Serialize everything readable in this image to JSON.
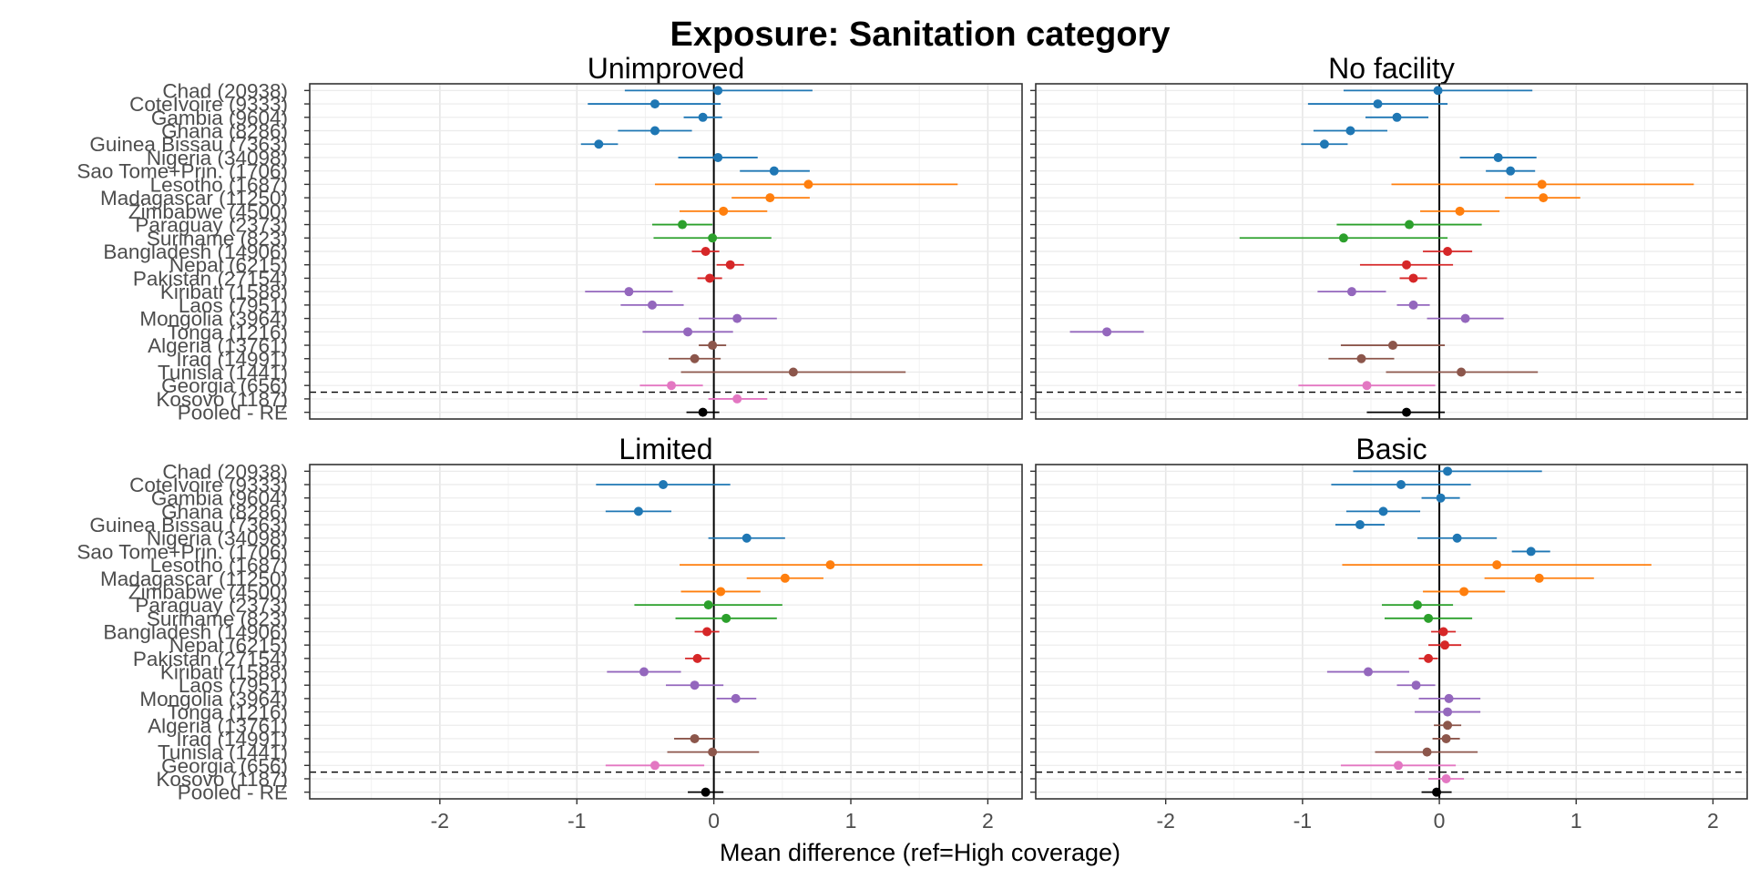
{
  "chart_data": {
    "type": "forest",
    "title": "Exposure: Sanitation category",
    "xlabel": "Mean difference (ref=High coverage)",
    "xlim": [
      -2.95,
      2.25
    ],
    "xticks": [
      -2,
      -1,
      0,
      1,
      2
    ],
    "grid": true,
    "reference_line": 0,
    "separator_below": "Kosovo (1187)",
    "countries": [
      "Chad (20938)",
      "CoteIvoire (9333)",
      "Gambia (9604)",
      "Ghana (8286)",
      "Guinea Bissau (7363)",
      "Nigeria (34098)",
      "Sao Tome+Prin. (1706)",
      "Lesotho (1687)",
      "Madagascar (11250)",
      "Zimbabwe (4500)",
      "Paraguay (2373)",
      "Suriname (823)",
      "Bangladesh (14906)",
      "Nepal (6215)",
      "Pakistan (27154)",
      "Kiribati (1588)",
      "Laos (7951)",
      "Mongolia (3964)",
      "Tonga (1216)",
      "Algeria (13761)",
      "Iraq (14991)",
      "Tunisia (1441)",
      "Georgia (656)",
      "Kosovo (1187)",
      "Pooled - RE"
    ],
    "region_colors": [
      "#1f77b4",
      "#1f77b4",
      "#1f77b4",
      "#1f77b4",
      "#1f77b4",
      "#1f77b4",
      "#1f77b4",
      "#ff7f0e",
      "#ff7f0e",
      "#ff7f0e",
      "#2ca02c",
      "#2ca02c",
      "#d62728",
      "#d62728",
      "#d62728",
      "#9467bd",
      "#9467bd",
      "#9467bd",
      "#9467bd",
      "#8c564b",
      "#8c564b",
      "#8c564b",
      "#e377c2",
      "#e377c2",
      "#000000"
    ],
    "panels": [
      {
        "name": "Unimproved",
        "estimates": [
          {
            "est": 0.03,
            "lo": -0.65,
            "hi": 0.72
          },
          {
            "est": -0.43,
            "lo": -0.92,
            "hi": 0.05
          },
          {
            "est": -0.08,
            "lo": -0.22,
            "hi": 0.06
          },
          {
            "est": -0.43,
            "lo": -0.7,
            "hi": -0.16
          },
          {
            "est": -0.84,
            "lo": -0.97,
            "hi": -0.7
          },
          {
            "est": 0.03,
            "lo": -0.26,
            "hi": 0.32
          },
          {
            "est": 0.44,
            "lo": 0.19,
            "hi": 0.7
          },
          {
            "est": 0.69,
            "lo": -0.43,
            "hi": 1.78
          },
          {
            "est": 0.41,
            "lo": 0.13,
            "hi": 0.7
          },
          {
            "est": 0.07,
            "lo": -0.25,
            "hi": 0.39
          },
          {
            "est": -0.23,
            "lo": -0.45,
            "hi": -0.01
          },
          {
            "est": -0.01,
            "lo": -0.44,
            "hi": 0.42
          },
          {
            "est": -0.06,
            "lo": -0.16,
            "hi": 0.04
          },
          {
            "est": 0.12,
            "lo": 0.02,
            "hi": 0.22
          },
          {
            "est": -0.03,
            "lo": -0.12,
            "hi": 0.06
          },
          {
            "est": -0.62,
            "lo": -0.94,
            "hi": -0.3
          },
          {
            "est": -0.45,
            "lo": -0.68,
            "hi": -0.22
          },
          {
            "est": 0.17,
            "lo": -0.11,
            "hi": 0.46
          },
          {
            "est": -0.19,
            "lo": -0.52,
            "hi": 0.14
          },
          {
            "est": -0.01,
            "lo": -0.11,
            "hi": 0.09
          },
          {
            "est": -0.14,
            "lo": -0.33,
            "hi": 0.05
          },
          {
            "est": 0.58,
            "lo": -0.24,
            "hi": 1.4
          },
          {
            "est": -0.31,
            "lo": -0.54,
            "hi": -0.08
          },
          {
            "est": 0.17,
            "lo": -0.04,
            "hi": 0.39
          },
          {
            "est": -0.08,
            "lo": -0.2,
            "hi": 0.04
          }
        ]
      },
      {
        "name": "No facility",
        "estimates": [
          {
            "est": -0.01,
            "lo": -0.7,
            "hi": 0.68
          },
          {
            "est": -0.45,
            "lo": -0.96,
            "hi": 0.06
          },
          {
            "est": -0.31,
            "lo": -0.54,
            "hi": -0.08
          },
          {
            "est": -0.65,
            "lo": -0.92,
            "hi": -0.38
          },
          {
            "est": -0.84,
            "lo": -1.01,
            "hi": -0.67
          },
          {
            "est": 0.43,
            "lo": 0.15,
            "hi": 0.71
          },
          {
            "est": 0.52,
            "lo": 0.34,
            "hi": 0.7
          },
          {
            "est": 0.75,
            "lo": -0.35,
            "hi": 1.86
          },
          {
            "est": 0.76,
            "lo": 0.48,
            "hi": 1.03
          },
          {
            "est": 0.15,
            "lo": -0.14,
            "hi": 0.44
          },
          {
            "est": -0.22,
            "lo": -0.75,
            "hi": 0.31
          },
          {
            "est": -0.7,
            "lo": -1.46,
            "hi": 0.06
          },
          {
            "est": 0.06,
            "lo": -0.12,
            "hi": 0.24
          },
          {
            "est": -0.24,
            "lo": -0.58,
            "hi": 0.1
          },
          {
            "est": -0.19,
            "lo": -0.29,
            "hi": -0.09
          },
          {
            "est": -0.64,
            "lo": -0.89,
            "hi": -0.39
          },
          {
            "est": -0.19,
            "lo": -0.31,
            "hi": -0.07
          },
          {
            "est": 0.19,
            "lo": -0.09,
            "hi": 0.47
          },
          {
            "est": -2.43,
            "lo": -2.7,
            "hi": -2.16
          },
          {
            "est": -0.34,
            "lo": -0.72,
            "hi": 0.04
          },
          {
            "est": -0.57,
            "lo": -0.81,
            "hi": -0.33
          },
          {
            "est": 0.16,
            "lo": -0.39,
            "hi": 0.72
          },
          {
            "est": -0.53,
            "lo": -1.03,
            "hi": -0.03
          },
          {
            "est": null,
            "lo": null,
            "hi": null
          },
          {
            "est": -0.24,
            "lo": -0.53,
            "hi": 0.04
          }
        ]
      },
      {
        "name": "Limited",
        "estimates": [
          {
            "est": null,
            "lo": null,
            "hi": null
          },
          {
            "est": -0.37,
            "lo": -0.86,
            "hi": 0.12
          },
          {
            "est": null,
            "lo": null,
            "hi": null
          },
          {
            "est": -0.55,
            "lo": -0.79,
            "hi": -0.31
          },
          {
            "est": null,
            "lo": null,
            "hi": null
          },
          {
            "est": 0.24,
            "lo": -0.04,
            "hi": 0.52
          },
          {
            "est": null,
            "lo": null,
            "hi": null
          },
          {
            "est": 0.85,
            "lo": -0.25,
            "hi": 1.96
          },
          {
            "est": 0.52,
            "lo": 0.24,
            "hi": 0.8
          },
          {
            "est": 0.05,
            "lo": -0.24,
            "hi": 0.34
          },
          {
            "est": -0.04,
            "lo": -0.58,
            "hi": 0.5
          },
          {
            "est": 0.09,
            "lo": -0.28,
            "hi": 0.46
          },
          {
            "est": -0.05,
            "lo": -0.14,
            "hi": 0.04
          },
          {
            "est": null,
            "lo": null,
            "hi": null
          },
          {
            "est": -0.12,
            "lo": -0.21,
            "hi": -0.03
          },
          {
            "est": -0.51,
            "lo": -0.78,
            "hi": -0.24
          },
          {
            "est": -0.14,
            "lo": -0.35,
            "hi": 0.07
          },
          {
            "est": 0.16,
            "lo": 0.02,
            "hi": 0.31
          },
          {
            "est": null,
            "lo": null,
            "hi": null
          },
          {
            "est": null,
            "lo": null,
            "hi": null
          },
          {
            "est": -0.14,
            "lo": -0.29,
            "hi": 0.01
          },
          {
            "est": -0.01,
            "lo": -0.34,
            "hi": 0.33
          },
          {
            "est": -0.43,
            "lo": -0.79,
            "hi": -0.07
          },
          {
            "est": null,
            "lo": null,
            "hi": null
          },
          {
            "est": -0.06,
            "lo": -0.19,
            "hi": 0.07
          }
        ]
      },
      {
        "name": "Basic",
        "estimates": [
          {
            "est": 0.06,
            "lo": -0.63,
            "hi": 0.75
          },
          {
            "est": -0.28,
            "lo": -0.79,
            "hi": 0.23
          },
          {
            "est": 0.01,
            "lo": -0.13,
            "hi": 0.15
          },
          {
            "est": -0.41,
            "lo": -0.68,
            "hi": -0.14
          },
          {
            "est": -0.58,
            "lo": -0.76,
            "hi": -0.4
          },
          {
            "est": 0.13,
            "lo": -0.16,
            "hi": 0.42
          },
          {
            "est": 0.67,
            "lo": 0.53,
            "hi": 0.81
          },
          {
            "est": 0.42,
            "lo": -0.71,
            "hi": 1.55
          },
          {
            "est": 0.73,
            "lo": 0.33,
            "hi": 1.13
          },
          {
            "est": 0.18,
            "lo": -0.12,
            "hi": 0.48
          },
          {
            "est": -0.16,
            "lo": -0.42,
            "hi": 0.1
          },
          {
            "est": -0.08,
            "lo": -0.4,
            "hi": 0.24
          },
          {
            "est": 0.03,
            "lo": -0.06,
            "hi": 0.12
          },
          {
            "est": 0.04,
            "lo": -0.08,
            "hi": 0.16
          },
          {
            "est": -0.08,
            "lo": -0.15,
            "hi": -0.01
          },
          {
            "est": -0.52,
            "lo": -0.82,
            "hi": -0.22
          },
          {
            "est": -0.17,
            "lo": -0.31,
            "hi": -0.03
          },
          {
            "est": 0.07,
            "lo": -0.15,
            "hi": 0.3
          },
          {
            "est": 0.06,
            "lo": -0.18,
            "hi": 0.3
          },
          {
            "est": 0.06,
            "lo": -0.04,
            "hi": 0.16
          },
          {
            "est": 0.05,
            "lo": -0.05,
            "hi": 0.15
          },
          {
            "est": -0.09,
            "lo": -0.47,
            "hi": 0.28
          },
          {
            "est": -0.3,
            "lo": -0.72,
            "hi": 0.12
          },
          {
            "est": 0.05,
            "lo": -0.08,
            "hi": 0.18
          },
          {
            "est": -0.02,
            "lo": -0.13,
            "hi": 0.09
          }
        ]
      }
    ]
  }
}
